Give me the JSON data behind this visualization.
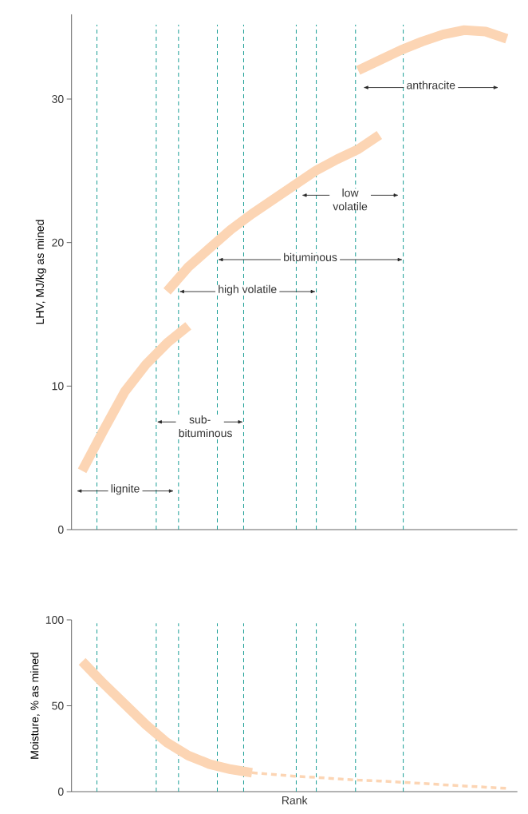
{
  "chart_data": [
    {
      "type": "line",
      "ylabel": "LHV, MJ/kg as mined",
      "categories": [
        null,
        null,
        null,
        null,
        null,
        null,
        null,
        null,
        null,
        null,
        null,
        null,
        null,
        null,
        null,
        null,
        null,
        null,
        null,
        null,
        null
      ],
      "ylim": [
        0,
        35.9
      ],
      "yticks": [
        0,
        10,
        20,
        30
      ],
      "tick_labels": "y",
      "series": [
        {
          "color": "#fcd5b4",
          "values": [
            4.1,
            6.9,
            9.6,
            11.5,
            13.0,
            14.2,
            null,
            null,
            null,
            null,
            null,
            null,
            null,
            null,
            null,
            null,
            null,
            null,
            null,
            null,
            null
          ]
        },
        {
          "color": "#fcd5b4",
          "values": [
            null,
            null,
            null,
            null,
            16.6,
            18.3,
            19.6,
            20.9,
            22.0,
            23.0,
            24.0,
            25.0,
            25.8,
            26.5,
            27.5,
            null,
            null,
            null,
            null,
            null,
            null
          ]
        },
        {
          "color": "#fcd5b4",
          "values": [
            null,
            null,
            null,
            null,
            null,
            null,
            null,
            null,
            null,
            null,
            null,
            null,
            null,
            32.0,
            32.7,
            33.4,
            34.0,
            34.5,
            34.8,
            34.7,
            34.2
          ]
        }
      ],
      "annotations": [
        "lignite",
        "sub-bituminous",
        "high volatile",
        "bituminous",
        "low volatile",
        "anthracite"
      ]
    },
    {
      "type": "line",
      "ylabel": "Moisture, % as mined",
      "xlabel": "Rank",
      "categories": [
        null,
        null,
        null,
        null,
        null,
        null,
        null,
        null,
        null,
        null,
        null,
        null,
        null,
        null,
        null,
        null,
        null,
        null,
        null,
        null,
        null
      ],
      "ylim": [
        0,
        100
      ],
      "yticks": [
        0,
        50,
        100
      ],
      "tick_labels": "y",
      "series": [
        {
          "color": "#fcd5b4",
          "line_style": "solid",
          "values": [
            75.8,
            63,
            51,
            39,
            28.5,
            21,
            16,
            13,
            11.0,
            null,
            null,
            null,
            null,
            null,
            null,
            null,
            null,
            null,
            null,
            null,
            null
          ]
        },
        {
          "color": "#fcd5b4",
          "line_style": "dashed",
          "values": [
            null,
            null,
            null,
            null,
            null,
            null,
            null,
            null,
            11.0,
            10.0,
            9.0,
            8.3,
            7.5,
            6.7,
            6.2,
            5.5,
            4.8,
            4.0,
            3.3,
            2.6,
            1.9
          ]
        }
      ]
    }
  ]
}
